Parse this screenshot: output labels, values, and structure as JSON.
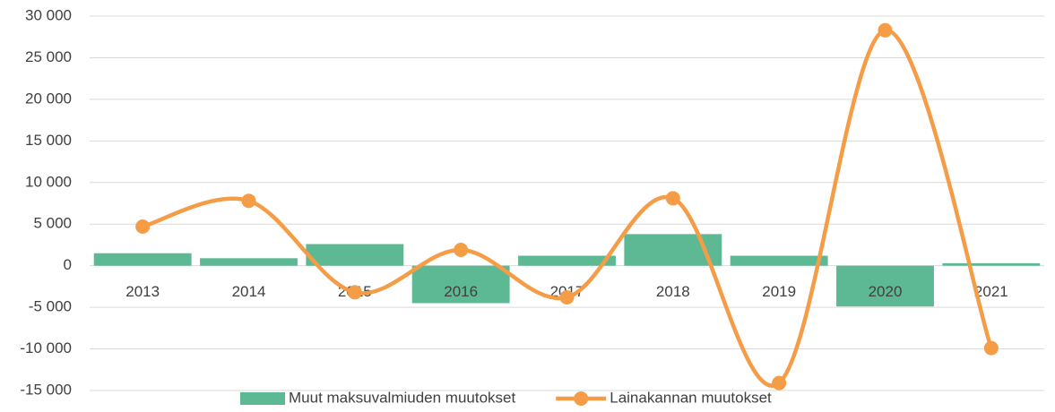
{
  "chart_data": {
    "type": "bar",
    "categories": [
      "2013",
      "2014",
      "2015",
      "2016",
      "2017",
      "2018",
      "2019",
      "2020",
      "2021"
    ],
    "series": [
      {
        "name": "Muut maksuvalmiuden muutokset",
        "type": "bar",
        "color": "#5cb994",
        "values": [
          1500,
          900,
          2600,
          -4500,
          1200,
          3800,
          1200,
          -4900,
          300
        ]
      },
      {
        "name": "Lainakannan muutokset",
        "type": "line",
        "color": "#f59c47",
        "values": [
          4700,
          7800,
          -3200,
          1900,
          -3800,
          8100,
          -14100,
          28300,
          -9900
        ]
      }
    ],
    "ylim": [
      -15000,
      30000
    ],
    "yticks": [
      {
        "value": -15000,
        "label": "-15 000"
      },
      {
        "value": -10000,
        "label": "-10 000"
      },
      {
        "value": -5000,
        "label": "-5 000"
      },
      0,
      {
        "value": 5000,
        "label": "5 000"
      },
      {
        "value": 10000,
        "label": "10 000"
      },
      {
        "value": 15000,
        "label": "15 000"
      },
      {
        "value": 20000,
        "label": "20 000"
      },
      {
        "value": 25000,
        "label": "25 000"
      },
      {
        "value": 30000,
        "label": "30 000"
      }
    ],
    "grid": true
  }
}
